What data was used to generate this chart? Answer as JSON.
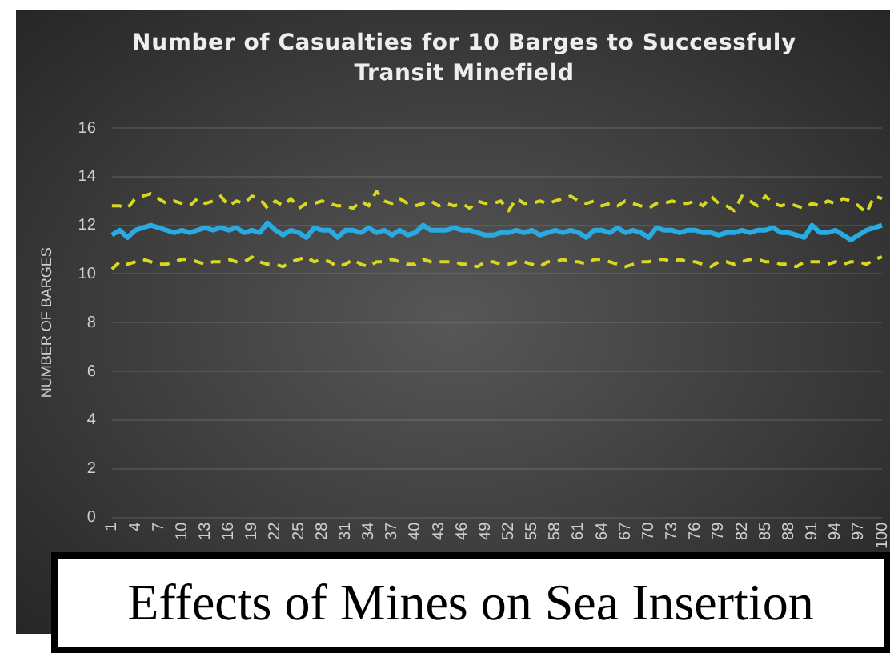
{
  "chart_data": {
    "type": "line",
    "title": "Number of Casualties for 10 Barges to Successfuly Transit Minefield",
    "ylabel": "NUMBER OF BARGES",
    "annotations": [
      "Effects of Mines on Sea Insertion"
    ],
    "categories": [
      "1",
      null,
      null,
      "4",
      null,
      null,
      "7",
      null,
      null,
      "10",
      null,
      null,
      "13",
      null,
      null,
      "16",
      null,
      null,
      "19",
      null,
      null,
      "22",
      null,
      null,
      "25",
      null,
      null,
      "28",
      null,
      null,
      "31",
      null,
      null,
      "34",
      null,
      null,
      "37",
      null,
      null,
      "40",
      null,
      null,
      "43",
      null,
      null,
      "46",
      null,
      null,
      "49",
      null,
      null,
      "52",
      null,
      null,
      "55",
      null,
      null,
      "58",
      null,
      null,
      "61",
      null,
      null,
      "64",
      null,
      null,
      "67",
      null,
      null,
      "70",
      null,
      null,
      "73",
      null,
      null,
      "76",
      null,
      null,
      "79",
      null,
      null,
      "82",
      null,
      null,
      "85",
      null,
      null,
      "88",
      null,
      null,
      "91",
      null,
      null,
      "94",
      null,
      null,
      "97",
      null,
      null,
      "100"
    ],
    "series": [
      {
        "color": "#29abe2",
        "line_style": "solid",
        "values": [
          11.6,
          11.8,
          11.5,
          11.8,
          11.9,
          12.0,
          11.9,
          11.8,
          11.7,
          11.8,
          11.7,
          11.8,
          11.9,
          11.8,
          11.9,
          11.8,
          11.9,
          11.7,
          11.8,
          11.7,
          12.1,
          11.8,
          11.6,
          11.8,
          11.7,
          11.5,
          11.9,
          11.8,
          11.8,
          11.5,
          11.8,
          11.8,
          11.7,
          11.9,
          11.7,
          11.8,
          11.6,
          11.8,
          11.6,
          11.7,
          12.0,
          11.8,
          11.8,
          11.8,
          11.9,
          11.8,
          11.8,
          11.7,
          11.6,
          11.6,
          11.7,
          11.7,
          11.8,
          11.7,
          11.8,
          11.6,
          11.7,
          11.8,
          11.7,
          11.8,
          11.7,
          11.5,
          11.8,
          11.8,
          11.7,
          11.9,
          11.7,
          11.8,
          11.7,
          11.5,
          11.9,
          11.8,
          11.8,
          11.7,
          11.8,
          11.8,
          11.7,
          11.7,
          11.6,
          11.7,
          11.7,
          11.8,
          11.7,
          11.8,
          11.8,
          11.9,
          11.7,
          11.7,
          11.6,
          11.5,
          12.0,
          11.7,
          11.7,
          11.8,
          11.6,
          11.4,
          11.6,
          11.8,
          11.9,
          12.0
        ]
      },
      {
        "color": "#d8d820",
        "line_style": "dashed",
        "values": [
          12.8,
          12.8,
          12.7,
          13.1,
          13.2,
          13.3,
          13.1,
          12.9,
          13.0,
          12.9,
          12.8,
          13.1,
          12.9,
          13.0,
          13.2,
          12.8,
          13.0,
          12.9,
          13.2,
          13.1,
          12.7,
          13.0,
          12.8,
          13.1,
          12.7,
          12.9,
          12.9,
          13.0,
          12.9,
          12.8,
          12.8,
          12.7,
          13.0,
          12.8,
          13.4,
          13.0,
          12.9,
          13.1,
          12.9,
          12.8,
          12.9,
          13.0,
          12.8,
          12.9,
          12.8,
          12.9,
          12.7,
          13.0,
          12.9,
          12.9,
          13.0,
          12.6,
          13.1,
          12.9,
          12.9,
          13.0,
          12.9,
          13.0,
          13.1,
          13.2,
          13.0,
          12.9,
          13.0,
          12.8,
          12.9,
          12.8,
          13.0,
          12.9,
          12.8,
          12.7,
          12.9,
          12.9,
          13.0,
          12.9,
          12.9,
          13.0,
          12.8,
          13.2,
          12.9,
          12.8,
          12.6,
          13.2,
          13.0,
          12.8,
          13.2,
          12.9,
          12.8,
          12.9,
          12.8,
          12.7,
          12.9,
          12.8,
          13.0,
          12.9,
          13.1,
          13.0,
          12.8,
          12.5,
          13.2,
          13.1
        ]
      },
      {
        "color": "#d8d820",
        "line_style": "dashed",
        "values": [
          10.2,
          10.5,
          10.4,
          10.5,
          10.6,
          10.5,
          10.4,
          10.4,
          10.5,
          10.6,
          10.6,
          10.5,
          10.4,
          10.5,
          10.5,
          10.6,
          10.5,
          10.5,
          10.7,
          10.5,
          10.4,
          10.4,
          10.3,
          10.5,
          10.6,
          10.7,
          10.5,
          10.6,
          10.5,
          10.3,
          10.4,
          10.6,
          10.4,
          10.3,
          10.5,
          10.5,
          10.6,
          10.5,
          10.4,
          10.4,
          10.6,
          10.5,
          10.5,
          10.5,
          10.5,
          10.4,
          10.4,
          10.3,
          10.5,
          10.5,
          10.4,
          10.4,
          10.5,
          10.5,
          10.4,
          10.3,
          10.5,
          10.5,
          10.6,
          10.5,
          10.5,
          10.4,
          10.6,
          10.6,
          10.5,
          10.4,
          10.3,
          10.4,
          10.5,
          10.5,
          10.6,
          10.6,
          10.5,
          10.6,
          10.5,
          10.5,
          10.4,
          10.3,
          10.5,
          10.5,
          10.4,
          10.5,
          10.6,
          10.6,
          10.5,
          10.5,
          10.4,
          10.4,
          10.3,
          10.5,
          10.5,
          10.5,
          10.4,
          10.5,
          10.4,
          10.5,
          10.5,
          10.4,
          10.6,
          10.7
        ]
      }
    ],
    "ylim": [
      0,
      16
    ],
    "yticks": [
      0,
      2,
      4,
      6,
      8,
      10,
      12,
      14,
      16
    ],
    "grid": "y",
    "legend": false,
    "marker": "none"
  }
}
